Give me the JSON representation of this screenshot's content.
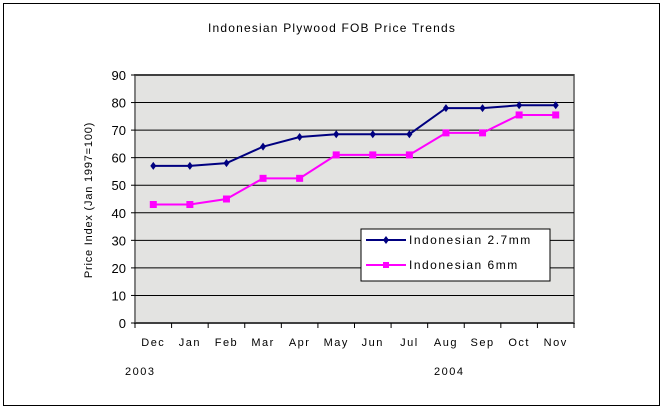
{
  "chart_data": {
    "type": "line",
    "title": "Indonesian Plywood FOB Price Trends",
    "xlabel": "",
    "ylabel": "Price Index (Jan 1997=100)",
    "categories": [
      "Dec",
      "Jan",
      "Feb",
      "Mar",
      "Apr",
      "May",
      "Jun",
      "Jul",
      "Aug",
      "Sep",
      "Oct",
      "Nov"
    ],
    "year_labels": [
      "2003",
      "2004"
    ],
    "ylim": [
      0,
      90
    ],
    "yticks": [
      0,
      10,
      20,
      30,
      40,
      50,
      60,
      70,
      80,
      90
    ],
    "grid": true,
    "legend_position": "lower-right inside",
    "series": [
      {
        "name": "Indonesian 2.7mm",
        "color": "#000080",
        "marker": "diamond",
        "values": [
          57,
          57,
          58,
          64,
          67.5,
          68.5,
          68.5,
          68.5,
          78,
          78,
          79,
          79
        ]
      },
      {
        "name": "Indonesian 6mm",
        "color": "#ff00ff",
        "marker": "square",
        "values": [
          43,
          43,
          45,
          52.5,
          52.5,
          61,
          61,
          61,
          69,
          69,
          75.5,
          75.5
        ]
      }
    ]
  }
}
